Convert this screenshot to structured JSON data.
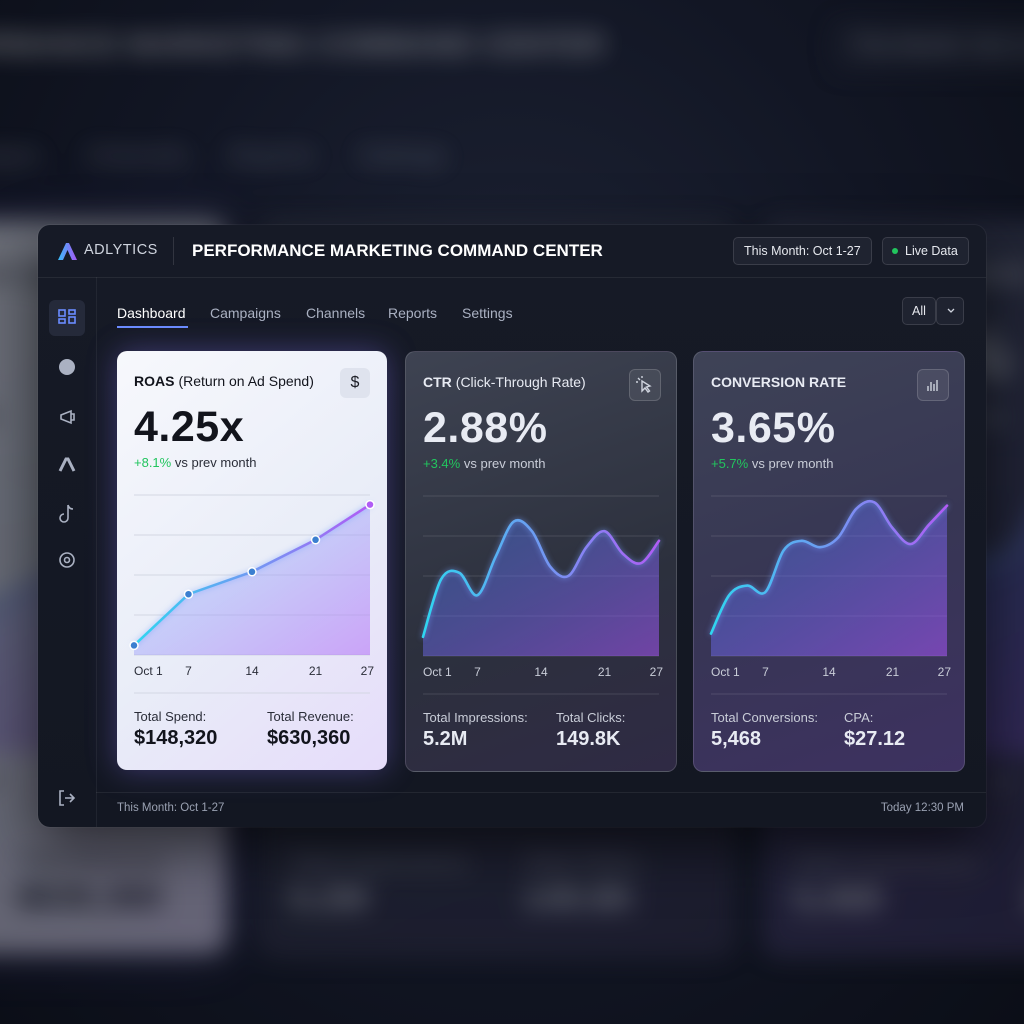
{
  "header": {
    "brand": "ADLYTICS",
    "title": "PERFORMANCE MARKETING COMMAND CENTER",
    "date_range": "This Month: Oct 1-27",
    "status": "Live Data"
  },
  "nav": {
    "tabs": [
      "Dashboard",
      "Campaigns",
      "Channels",
      "Reports",
      "Settings"
    ],
    "active": 0,
    "filter": "All"
  },
  "cards": [
    {
      "title": "ROAS",
      "subtitle": "(Return on Ad Spend)",
      "icon": "$",
      "theme": "light",
      "value": "4.25x",
      "change": "+8.1%",
      "change_text": "vs prev month",
      "chart": {
        "type": "line",
        "smooth": false,
        "markers": true,
        "x": [
          1,
          7,
          14,
          21,
          27
        ],
        "values": [
          6,
          38,
          52,
          72,
          94
        ],
        "xlim": [
          1,
          27
        ],
        "xticks": [
          {
            "value": 1,
            "label": "Oct 1"
          },
          7,
          14,
          21,
          27
        ],
        "ylim": [
          0,
          100
        ],
        "yticks": [
          0,
          25,
          50,
          75,
          100
        ],
        "grid": true
      },
      "totals": [
        {
          "label": "Total Spend:",
          "value": "$148,320"
        },
        {
          "label": "Total Revenue:",
          "value": "$630,360"
        }
      ]
    },
    {
      "title": "CTR",
      "subtitle": "(Click-Through Rate)",
      "theme": "dark",
      "value": "2.88%",
      "change": "+3.4%",
      "change_text": "vs prev month",
      "chart": {
        "type": "line",
        "smooth": true,
        "markers": false,
        "x": [
          1,
          3,
          5,
          7,
          9,
          11,
          13,
          15,
          17,
          19,
          21,
          23,
          25,
          27
        ],
        "values": [
          12,
          48,
          52,
          38,
          62,
          84,
          78,
          56,
          50,
          68,
          78,
          64,
          58,
          72
        ],
        "xlim": [
          1,
          27
        ],
        "xticks": [
          {
            "value": 1,
            "label": "Oct 1"
          },
          7,
          14,
          21,
          27
        ],
        "ylim": [
          0,
          100
        ],
        "yticks": [
          0,
          25,
          50,
          75,
          100
        ],
        "grid": true
      },
      "totals": [
        {
          "label": "Total Impressions:",
          "value": "5.2M"
        },
        {
          "label": "Total Clicks:",
          "value": "149.8K"
        }
      ]
    },
    {
      "title": "CONVERSION RATE",
      "theme": "purple",
      "value": "3.65%",
      "change": "+5.7%",
      "change_text": "vs prev month",
      "chart": {
        "type": "line",
        "smooth": true,
        "markers": false,
        "x": [
          1,
          3,
          5,
          7,
          9,
          11,
          13,
          15,
          17,
          19,
          21,
          23,
          25,
          27
        ],
        "values": [
          14,
          38,
          44,
          40,
          66,
          72,
          68,
          74,
          92,
          96,
          80,
          70,
          82,
          94
        ],
        "xlim": [
          1,
          27
        ],
        "xticks": [
          {
            "value": 1,
            "label": "Oct 1"
          },
          7,
          14,
          21,
          27
        ],
        "ylim": [
          0,
          100
        ],
        "yticks": [
          0,
          25,
          50,
          75,
          100
        ],
        "grid": true
      },
      "totals": [
        {
          "label": "Total Conversions:",
          "value": "5,468"
        },
        {
          "label": "CPA:",
          "value": "$27.12"
        }
      ]
    }
  ],
  "footer": {
    "left": "This Month: Oct 1-27",
    "right": "Today 12:30 PM"
  }
}
